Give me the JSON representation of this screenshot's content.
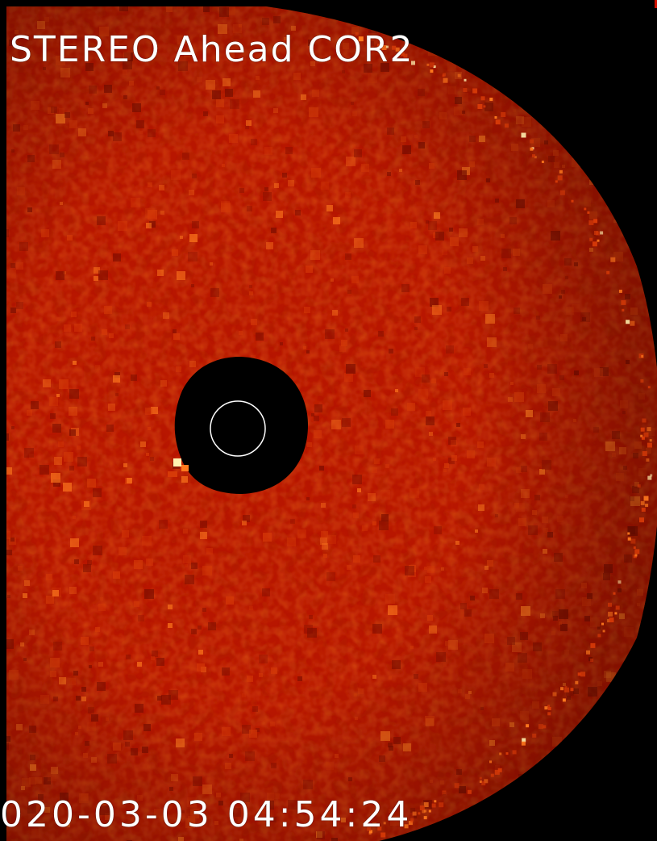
{
  "image": {
    "instrument_label": "STEREO Ahead COR2",
    "timestamp_label": "020-03-03 04:54:24",
    "colors": {
      "background": "#000000",
      "corona_base": "#b81600",
      "corona_dark": "#7a0d00",
      "corona_mid": "#d63a08",
      "corona_bright": "#ff7a1e",
      "corona_hot": "#fff2b0",
      "occulter": "#000000",
      "sun_outline": "#ffffff",
      "label": "#ffffff",
      "edge_tick": "#d01000"
    },
    "icons": {
      "occulter": "occulter-disk-icon",
      "sun_limb": "sun-limb-circle-icon"
    }
  }
}
